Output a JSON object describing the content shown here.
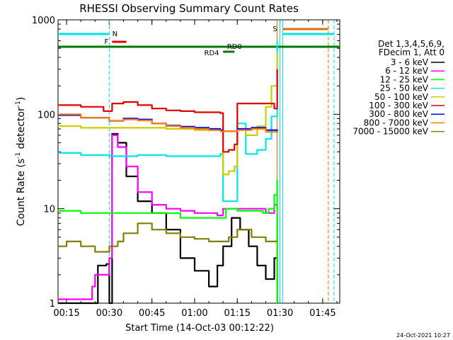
{
  "chart_data": {
    "type": "line",
    "title": "RHESSI Observing Summary Count Rates",
    "xlabel": "Start Time (14-Oct-03 00:12:22)",
    "ylabel": "Count Rate (s⁻¹ detector⁻¹)",
    "ylabel_main": "Count Rate (s",
    "ylabel_mid": " detector",
    "ylabel_end": ")",
    "ylabel_sup": "-1",
    "y_scale": "log",
    "xlim": [
      "00:12",
      "01:51"
    ],
    "ylim": [
      1,
      1000
    ],
    "x_ticks": [
      "00:15",
      "00:30",
      "00:45",
      "01:00",
      "01:15",
      "01:30",
      "01:45"
    ],
    "y_ticks": [
      "1",
      "10",
      "100",
      "1000"
    ],
    "legend_header": [
      "Det 1,3,4,5,6,9,",
      "FDecim 1, Att 0"
    ],
    "legend_position": "right",
    "footer_date": "24-Oct-2021 10:27",
    "annotations": {
      "N": "N",
      "F": "F",
      "RD0": "RD0",
      "RD4": "RD4",
      "S": "S"
    },
    "annotation_colors": {
      "N": "#00e5e5",
      "F": "#e00000",
      "RD0": "#007a00",
      "RD4": "#007a00",
      "S": "#e07000"
    },
    "series": [
      {
        "name": "3 - 6 keV",
        "color": "#000000",
        "points": [
          [
            "00:12",
            1
          ],
          [
            "00:22",
            1
          ],
          [
            "00:26",
            2.5
          ],
          [
            "00:29",
            2.6
          ],
          [
            "00:30",
            1
          ],
          [
            "00:31",
            62
          ],
          [
            "00:33",
            50
          ],
          [
            "00:36",
            22
          ],
          [
            "00:40",
            12
          ],
          [
            "00:45",
            9
          ],
          [
            "00:50",
            6
          ],
          [
            "00:55",
            3
          ],
          [
            "01:00",
            2.2
          ],
          [
            "01:05",
            1.5
          ],
          [
            "01:08",
            2.5
          ],
          [
            "01:10",
            4
          ],
          [
            "01:13",
            8
          ],
          [
            "01:16",
            6
          ],
          [
            "01:19",
            4
          ],
          [
            "01:22",
            2.5
          ],
          [
            "01:25",
            1.8
          ],
          [
            "01:28",
            3
          ],
          [
            "01:29",
            1
          ]
        ]
      },
      {
        "name": "6 - 12 keV",
        "color": "#ff00ff",
        "points": [
          [
            "00:12",
            1.1
          ],
          [
            "00:24",
            1.5
          ],
          [
            "00:25",
            2
          ],
          [
            "00:29",
            2
          ],
          [
            "00:30",
            3
          ],
          [
            "00:31",
            60
          ],
          [
            "00:33",
            45
          ],
          [
            "00:36",
            28
          ],
          [
            "00:40",
            15
          ],
          [
            "00:45",
            11
          ],
          [
            "00:50",
            10
          ],
          [
            "00:55",
            9.5
          ],
          [
            "01:00",
            9
          ],
          [
            "01:05",
            9
          ],
          [
            "01:08",
            8.5
          ],
          [
            "01:10",
            10
          ],
          [
            "01:15",
            10
          ],
          [
            "01:20",
            10
          ],
          [
            "01:25",
            9
          ],
          [
            "01:28",
            11
          ],
          [
            "01:29",
            1
          ]
        ]
      },
      {
        "name": "12 - 25 keV",
        "color": "#00ff00",
        "points": [
          [
            "00:12",
            9.5
          ],
          [
            "00:20",
            9
          ],
          [
            "00:30",
            9
          ],
          [
            "00:35",
            9
          ],
          [
            "00:45",
            9
          ],
          [
            "00:55",
            8
          ],
          [
            "01:05",
            8
          ],
          [
            "01:09",
            8
          ],
          [
            "01:11",
            10
          ],
          [
            "01:15",
            9.5
          ],
          [
            "01:20",
            9.5
          ],
          [
            "01:24",
            9
          ],
          [
            "01:26",
            10
          ],
          [
            "01:28",
            14
          ],
          [
            "01:29",
            20
          ],
          [
            "01:29",
            1
          ]
        ]
      },
      {
        "name": "25 - 50 keV",
        "color": "#00e5e5",
        "points": [
          [
            "00:12",
            39
          ],
          [
            "00:20",
            37
          ],
          [
            "00:30",
            36
          ],
          [
            "00:40",
            37
          ],
          [
            "00:50",
            36
          ],
          [
            "01:00",
            36
          ],
          [
            "01:05",
            36
          ],
          [
            "01:09",
            38
          ],
          [
            "01:10",
            12
          ],
          [
            "01:14",
            12
          ],
          [
            "01:15",
            80
          ],
          [
            "01:18",
            38
          ],
          [
            "01:22",
            42
          ],
          [
            "01:25",
            55
          ],
          [
            "01:27",
            95
          ],
          [
            "01:29",
            200
          ],
          [
            "01:29",
            600
          ]
        ]
      },
      {
        "name": "50 - 100 keV",
        "color": "#cccc00",
        "points": [
          [
            "00:12",
            75
          ],
          [
            "00:20",
            72
          ],
          [
            "00:30",
            72
          ],
          [
            "00:40",
            72
          ],
          [
            "00:50",
            70
          ],
          [
            "01:00",
            68
          ],
          [
            "01:05",
            68
          ],
          [
            "01:09",
            66
          ],
          [
            "01:10",
            23
          ],
          [
            "01:12",
            25
          ],
          [
            "01:14",
            28
          ],
          [
            "01:15",
            70
          ],
          [
            "01:18",
            60
          ],
          [
            "01:22",
            75
          ],
          [
            "01:25",
            120
          ],
          [
            "01:27",
            200
          ],
          [
            "01:29",
            450
          ]
        ]
      },
      {
        "name": "100 - 300 keV",
        "color": "#e00000",
        "points": [
          [
            "00:12",
            125
          ],
          [
            "00:20",
            120
          ],
          [
            "00:28",
            108
          ],
          [
            "00:31",
            130
          ],
          [
            "00:35",
            135
          ],
          [
            "00:40",
            125
          ],
          [
            "00:45",
            115
          ],
          [
            "00:50",
            110
          ],
          [
            "00:55",
            108
          ],
          [
            "01:00",
            105
          ],
          [
            "01:05",
            105
          ],
          [
            "01:09",
            103
          ],
          [
            "01:10",
            40
          ],
          [
            "01:12",
            42
          ],
          [
            "01:14",
            48
          ],
          [
            "01:15",
            130
          ],
          [
            "01:20",
            130
          ],
          [
            "01:25",
            130
          ],
          [
            "01:28",
            115
          ],
          [
            "01:29",
            300
          ]
        ]
      },
      {
        "name": "300 - 800 keV",
        "color": "#0000ff",
        "points": [
          [
            "00:12",
            98
          ],
          [
            "00:20",
            92
          ],
          [
            "00:30",
            85
          ],
          [
            "00:35",
            90
          ],
          [
            "00:40",
            88
          ],
          [
            "00:45",
            80
          ],
          [
            "00:50",
            76
          ],
          [
            "00:55",
            74
          ],
          [
            "01:00",
            72
          ],
          [
            "01:05",
            70
          ],
          [
            "01:09",
            68
          ],
          [
            "01:10",
            66
          ],
          [
            "01:15",
            70
          ],
          [
            "01:20",
            72
          ],
          [
            "01:25",
            68
          ],
          [
            "01:29",
            66
          ]
        ]
      },
      {
        "name": "800 - 7000 keV",
        "color": "#ff8000",
        "points": [
          [
            "00:12",
            100
          ],
          [
            "00:20",
            92
          ],
          [
            "00:30",
            85
          ],
          [
            "00:35",
            88
          ],
          [
            "00:40",
            86
          ],
          [
            "00:45",
            80
          ],
          [
            "00:50",
            75
          ],
          [
            "00:55",
            72
          ],
          [
            "01:00",
            70
          ],
          [
            "01:05",
            68
          ],
          [
            "01:09",
            66
          ],
          [
            "01:12",
            66
          ],
          [
            "01:15",
            68
          ],
          [
            "01:20",
            70
          ],
          [
            "01:25",
            65
          ],
          [
            "01:29",
            64
          ]
        ]
      },
      {
        "name": "7000 - 15000 keV",
        "color": "#808000",
        "points": [
          [
            "00:12",
            4
          ],
          [
            "00:15",
            4.5
          ],
          [
            "00:20",
            4
          ],
          [
            "00:25",
            3.5
          ],
          [
            "00:30",
            4
          ],
          [
            "00:33",
            4.5
          ],
          [
            "00:35",
            5.5
          ],
          [
            "00:40",
            7
          ],
          [
            "00:45",
            6
          ],
          [
            "00:50",
            5.5
          ],
          [
            "00:55",
            5
          ],
          [
            "01:00",
            4.8
          ],
          [
            "01:05",
            4.5
          ],
          [
            "01:09",
            4.5
          ],
          [
            "01:12",
            5
          ],
          [
            "01:15",
            6
          ],
          [
            "01:20",
            5
          ],
          [
            "01:25",
            4.5
          ],
          [
            "01:29",
            4.5
          ]
        ]
      }
    ]
  }
}
